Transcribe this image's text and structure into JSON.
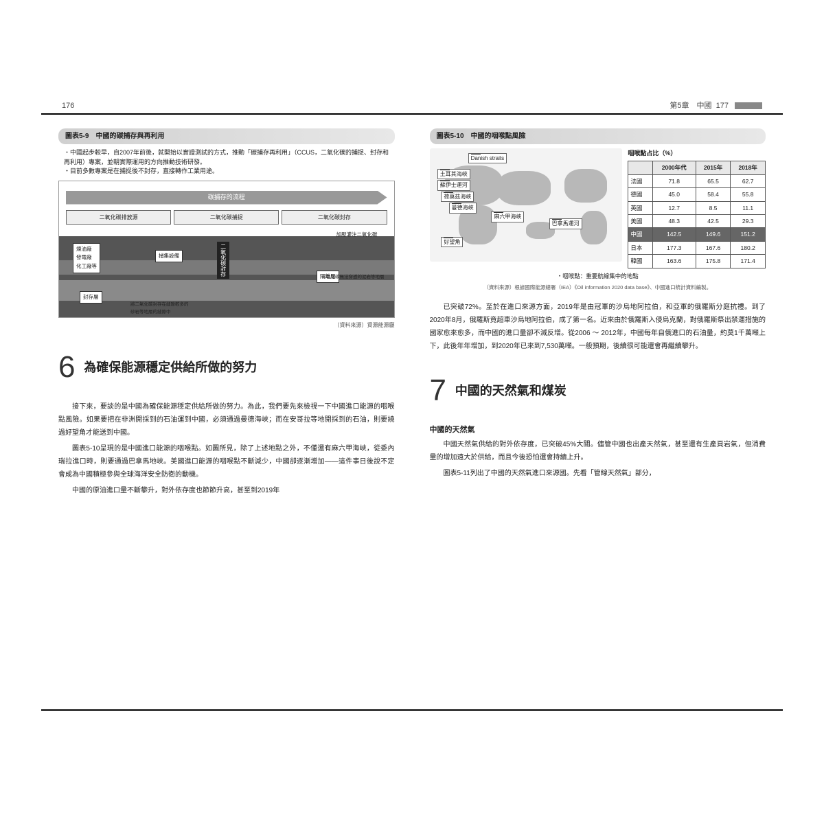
{
  "leftPage": {
    "pageNum": "176",
    "fig59": {
      "header": "圖表5-9　中國的碳捕存與再利用",
      "bullet1": "・中國起步較早，自2007年前後，就開始以實證測試的方式，推動「碳捕存再利用」（CCUS，二氧化碳的捕捉、封存和再利用）專案，並朝實際運用的方向推動技術研發。",
      "bullet2": "・目前多數專案是在捕捉後不封存，直接轉作工業用途。",
      "arrowTitle": "碳捕存的流程",
      "box1": "二氧化碳排放源",
      "box2": "二氧化碳捕捉",
      "box3": "二氧化碳封存",
      "lbl_plant": "煉油廠\n發電廠\n化工廠等",
      "lbl_capture": "捕集設備",
      "lbl_inject": "加壓灌注二氧化碳",
      "lbl_vert": "二氧化碳封存",
      "lbl_barrier": "隔離層",
      "lbl_storage": "封存層",
      "lbl_note1": "二氧化碳無法穿透的泥岩等地層",
      "lbl_note2": "將二氧化碳封存在縫隙較多的\n砂岩等地層的縫隙中",
      "source": "（資料來源）資源能源廳"
    },
    "section6": {
      "num": "6",
      "title": "為確保能源穩定供給所做的努力",
      "p1": "接下來，要談的是中國為確保能源穩定供給所做的努力。為此，我們要先來檢視一下中國進口能源的咽喉點風險。如果要把在非洲開採到的石油運到中國，必須通過曼德海峽；而在安哥拉等地開採到的石油，則要繞過好望角才能送到中國。",
      "p2": "圖表5-10呈現的是中國進口能源的咽喉點。如圖所見，除了上述地點之外，不僅還有麻六甲海峽，從委內瑞拉進口時，則要通過巴拿馬地峽。美國進口能源的咽喉點不斷減少，中國卻逐漸增加——這件事日後說不定會成為中國積極參與全球海洋安全防衛的動機。",
      "p3": "中國的原油進口量不斷攀升，對外依存度也節節升高，甚至到2019年"
    }
  },
  "rightPage": {
    "chapter": "第5章　中國",
    "pageNum": "177",
    "fig510": {
      "header": "圖表5-10　中國的咽喉點風險",
      "mapLabels": {
        "danish": "Danish straits",
        "turkey": "土耳其海峽",
        "suez": "蘇伊士運河",
        "hormuz": "荷莫茲海峽",
        "mandeb": "曼德海峽",
        "malacca": "麻六甲海峽",
        "goodhope": "好望角",
        "panama": "巴拿馬運河"
      },
      "tableTitle": "咽喉點占比（%）",
      "cols": [
        "",
        "2000年代",
        "2015年",
        "2018年"
      ],
      "rows": [
        {
          "label": "法國",
          "v": [
            "71.8",
            "65.5",
            "62.7"
          ],
          "hl": false
        },
        {
          "label": "德國",
          "v": [
            "45.0",
            "58.4",
            "55.8"
          ],
          "hl": false
        },
        {
          "label": "英國",
          "v": [
            "12.7",
            "8.5",
            "11.1"
          ],
          "hl": false
        },
        {
          "label": "美國",
          "v": [
            "48.3",
            "42.5",
            "29.3"
          ],
          "hl": false
        },
        {
          "label": "中國",
          "v": [
            "142.5",
            "149.6",
            "151.2"
          ],
          "hl": true
        },
        {
          "label": "日本",
          "v": [
            "177.3",
            "167.6",
            "180.2"
          ],
          "hl": false
        },
        {
          "label": "韓國",
          "v": [
            "163.6",
            "175.8",
            "171.4"
          ],
          "hl": false
        }
      ],
      "note": "・咽喉點：重要航線集中的地點",
      "source": "（資料來源）根據國際能源總署（IEA）《Oil information 2020 data base》、中國進口統計資料編製。"
    },
    "contP": "已突破72%。至於在進口來源方面，2019年是由冠軍的沙烏地阿拉伯，和亞軍的俄羅斯分庭抗禮。到了2020年8月，俄羅斯竟超車沙烏地阿拉伯，成了第一名。近來由於俄羅斯入侵烏克蘭，對俄羅斯祭出禁運措施的國家愈來愈多，而中國的進口量卻不減反增。從2006 ～ 2012年，中國每年自俄進口的石油量，約莫1千萬噸上下，此後年年增加，到2020年已來到7,530萬噸。一般預期，後續很可能還會再繼續攀升。",
    "section7": {
      "num": "7",
      "title": "中國的天然氣和煤炭",
      "sub": "中國的天然氣",
      "p1": "中國天然氣供給的對外依存度，已突破45%大關。儘管中國也出產天然氣，甚至還有生產頁岩氣，但消費量的增加遠大於供給，而且今後恐怕還會持續上升。",
      "p2": "圖表5-11列出了中國的天然氣進口來源國。先看「管線天然氣」部分，"
    }
  }
}
